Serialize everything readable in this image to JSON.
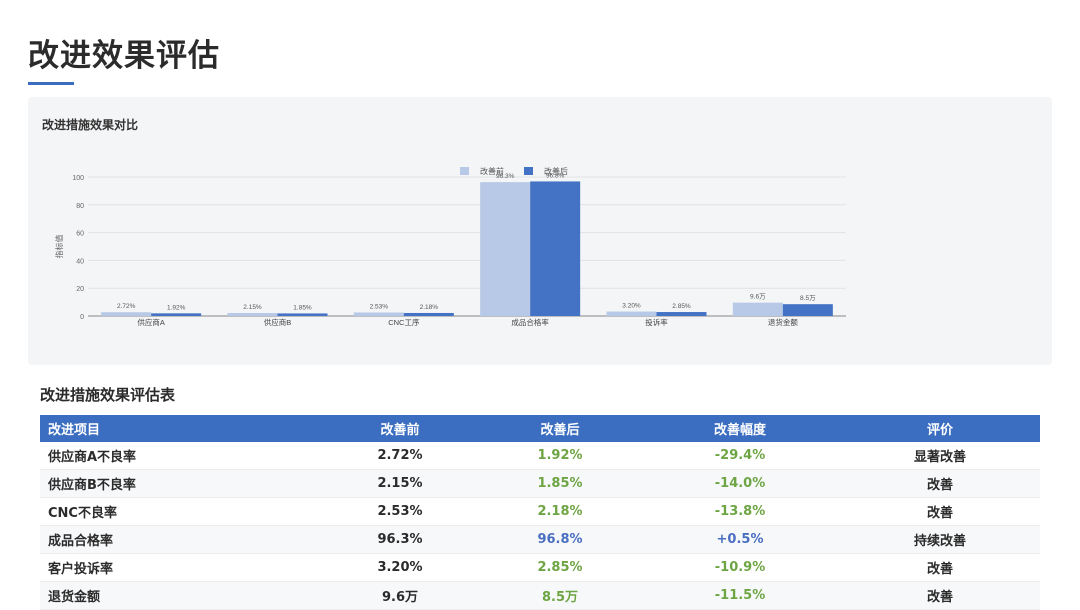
{
  "page": {
    "title": "改进效果评估"
  },
  "chart_data": {
    "type": "bar",
    "title": "改进措施效果对比",
    "ylabel": "指标值",
    "xlabel": "",
    "ylim": [
      0,
      100
    ],
    "yticks": [
      0,
      20,
      40,
      60,
      80,
      100
    ],
    "legend_position": "top-center",
    "grid": true,
    "categories": [
      "供应商A",
      "供应商B",
      "CNC工序",
      "成品合格率",
      "投诉率",
      "退货金额"
    ],
    "series": [
      {
        "name": "改善前",
        "color": "#b7c9e6",
        "values": [
          2.72,
          2.15,
          2.53,
          96.3,
          3.2,
          9.6
        ],
        "labels": [
          "2.72%",
          "2.15%",
          "2.53%",
          "96.3%",
          "3.20%",
          "9.6万"
        ]
      },
      {
        "name": "改善后",
        "color": "#4472c4",
        "values": [
          1.92,
          1.85,
          2.18,
          96.8,
          2.85,
          8.5
        ],
        "labels": [
          "1.92%",
          "1.85%",
          "2.18%",
          "96.8%",
          "2.85%",
          "8.5万"
        ]
      }
    ]
  },
  "table": {
    "title": "改进措施效果评估表",
    "headers": [
      "改进项目",
      "改善前",
      "改善后",
      "改善幅度",
      "评价"
    ],
    "rows": [
      [
        "供应商A不良率",
        "2.72%",
        "1.92%",
        "-29.4%",
        "显著改善"
      ],
      [
        "供应商B不良率",
        "2.15%",
        "1.85%",
        "-14.0%",
        "改善"
      ],
      [
        "CNC不良率",
        "2.53%",
        "2.18%",
        "-13.8%",
        "改善"
      ],
      [
        "成品合格率",
        "96.3%",
        "96.8%",
        "+0.5%",
        "持续改善"
      ],
      [
        "客户投诉率",
        "3.20%",
        "2.85%",
        "-10.9%",
        "改善"
      ],
      [
        "退货金额",
        "9.6万",
        "8.5万",
        "-11.5%",
        "改善"
      ]
    ],
    "colors": {
      "header_bg": "#3b6ec1",
      "improve_green": "#6ea544",
      "improve_blue": "#4b6fc0"
    }
  }
}
